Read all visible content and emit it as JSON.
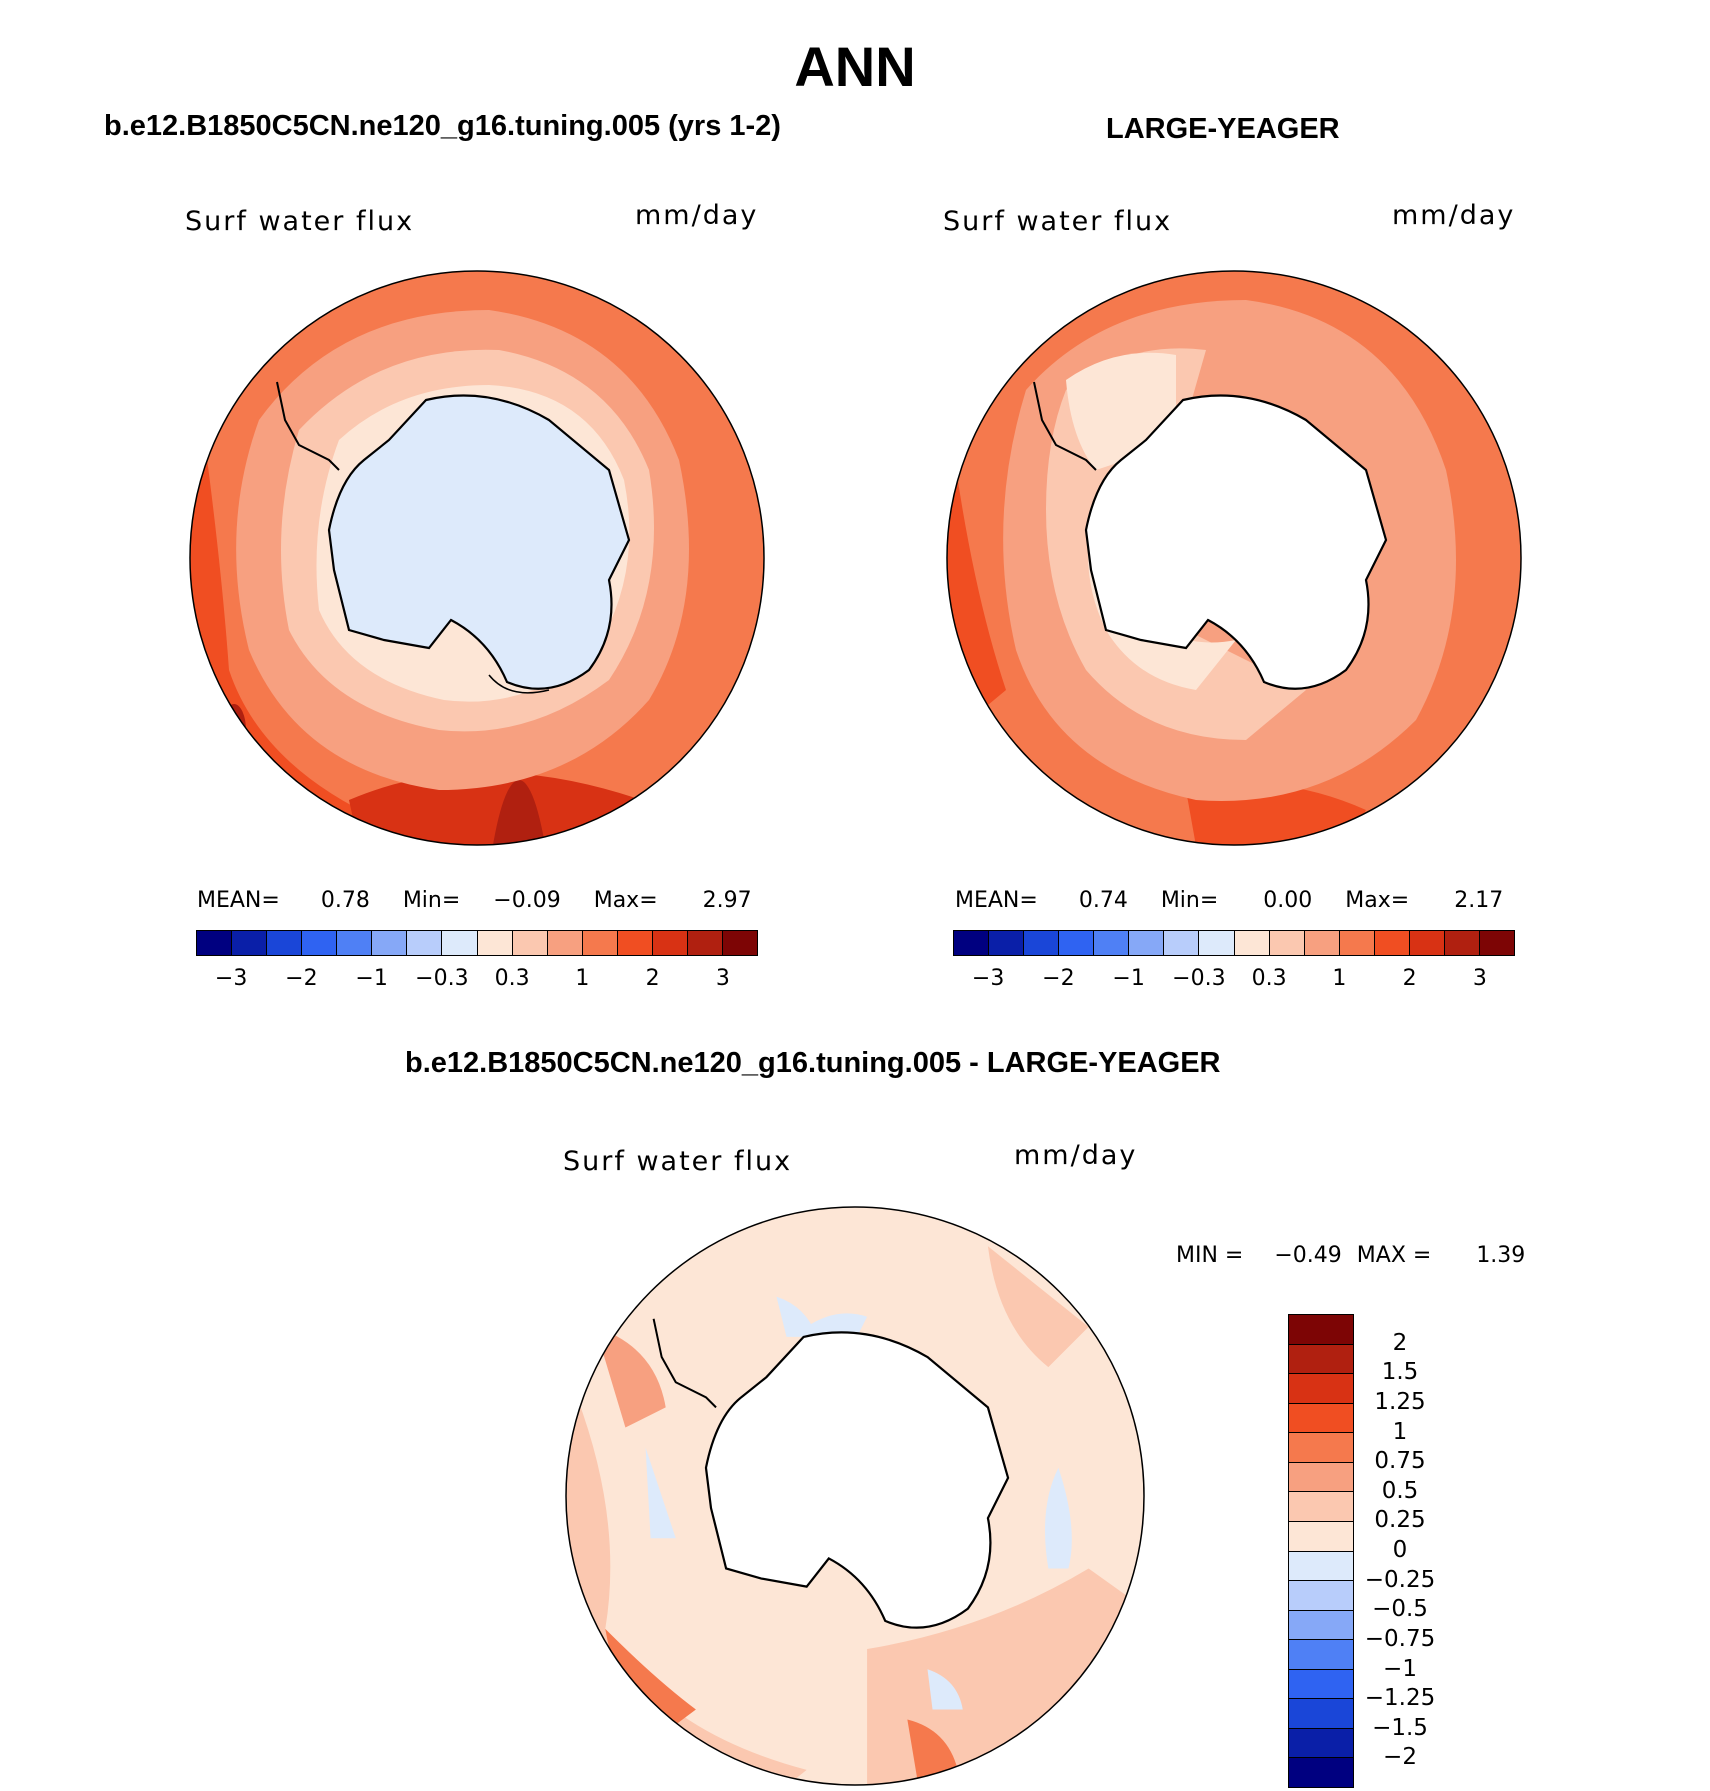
{
  "figure": {
    "title": "ANN"
  },
  "panels": [
    {
      "title": "b.e12.B1850C5CN.ne120_g16.tuning.005 (yrs 1-2)",
      "variable": "Surf water flux",
      "units": "mm/day",
      "stats": {
        "mean_label": "MEAN=",
        "mean": "0.78",
        "min_label": "Min=",
        "min": "−0.09",
        "max_label": "Max=",
        "max": "2.97"
      },
      "colorbar_ticks": [
        "−3",
        "−2",
        "−1",
        "−0.3",
        "0.3",
        "1",
        "2",
        "3"
      ]
    },
    {
      "title": "LARGE-YEAGER",
      "variable": "Surf water flux",
      "units": "mm/day",
      "stats": {
        "mean_label": "MEAN=",
        "mean": "0.74",
        "min_label": "Min=",
        "min": "0.00",
        "max_label": "Max=",
        "max": "2.17"
      },
      "colorbar_ticks": [
        "−3",
        "−2",
        "−1",
        "−0.3",
        "0.3",
        "1",
        "2",
        "3"
      ]
    },
    {
      "title": "b.e12.B1850C5CN.ne120_g16.tuning.005 - LARGE-YEAGER",
      "variable": "Surf water flux",
      "units": "mm/day",
      "stats": {
        "min_label": "MIN =",
        "min": "−0.49",
        "max_label": "MAX =",
        "max": "1.39"
      },
      "colorbar_ticks": [
        "2",
        "1.5",
        "1.25",
        "1",
        "0.75",
        "0.5",
        "0.25",
        "0",
        "−0.25",
        "−0.5",
        "−0.75",
        "−1",
        "−1.25",
        "−1.5",
        "−2"
      ]
    }
  ],
  "colors": {
    "main_palette": [
      "#000080",
      "#0a1fa8",
      "#1a46d8",
      "#2f63f2",
      "#4f80f5",
      "#86a8f7",
      "#b8cdfb",
      "#ddeafb",
      "#fde6d6",
      "#fbc8b0",
      "#f7a080",
      "#f5794d",
      "#f04e22",
      "#d83214",
      "#b02010",
      "#7d0505"
    ],
    "diff_palette": [
      "#7d0505",
      "#b02010",
      "#d83214",
      "#f04e22",
      "#f5794d",
      "#f7a080",
      "#fbc8b0",
      "#fde6d6",
      "#ddeafb",
      "#b8cdfb",
      "#86a8f7",
      "#4f80f5",
      "#2f63f2",
      "#1a46d8",
      "#0a1fa8",
      "#000080"
    ],
    "land": "#ffffff"
  }
}
